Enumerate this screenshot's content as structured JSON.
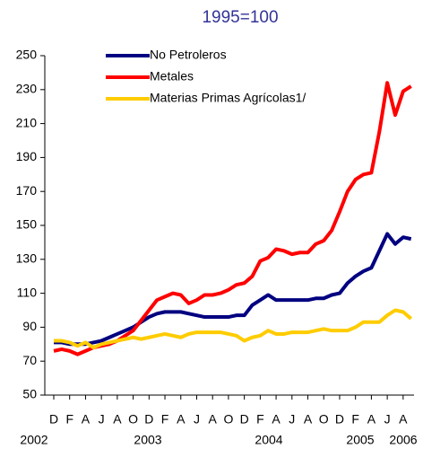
{
  "chart_data": {
    "type": "line",
    "title": "1995=100",
    "categories": [
      "D",
      null,
      "F",
      null,
      "A",
      null,
      "J",
      null,
      "A",
      null,
      "O",
      null,
      "D",
      null,
      "F",
      null,
      "A",
      null,
      "J",
      null,
      "A",
      null,
      "O",
      null,
      "D",
      null,
      "F",
      null,
      "A",
      null,
      "J",
      null,
      "A",
      null,
      "O",
      null,
      "D",
      null,
      "F",
      null,
      "A",
      null,
      "J",
      null,
      "A",
      null
    ],
    "year_labels": [
      "2002",
      "2003",
      "2004",
      "2005",
      "2006"
    ],
    "series": [
      {
        "name": "No Petroleros",
        "color": "#000080",
        "values": [
          81,
          81,
          80,
          80,
          80,
          81,
          82,
          84,
          86,
          88,
          90,
          93,
          96,
          98,
          99,
          99,
          99,
          98,
          97,
          96,
          96,
          96,
          96,
          97,
          97,
          103,
          106,
          109,
          106,
          106,
          106,
          106,
          106,
          107,
          107,
          109,
          110,
          116,
          120,
          123,
          125,
          135,
          145,
          139,
          143,
          142
        ]
      },
      {
        "name": "Metales",
        "color": "#ff0000",
        "values": [
          76,
          77,
          76,
          74,
          76,
          78,
          79,
          80,
          82,
          85,
          88,
          94,
          100,
          106,
          108,
          110,
          109,
          104,
          106,
          109,
          109,
          110,
          112,
          115,
          116,
          120,
          129,
          131,
          136,
          135,
          133,
          134,
          134,
          139,
          141,
          147,
          158,
          170,
          177,
          180,
          181,
          205,
          234,
          215,
          229,
          232
        ]
      },
      {
        "name": "Materias Primas Agrícolas1/",
        "color": "#ffcc00",
        "values": [
          82,
          82,
          81,
          79,
          81,
          78,
          80,
          81,
          82,
          83,
          84,
          83,
          84,
          85,
          86,
          85,
          84,
          86,
          87,
          87,
          87,
          87,
          86,
          85,
          82,
          84,
          85,
          88,
          86,
          86,
          87,
          87,
          87,
          88,
          89,
          88,
          88,
          88,
          90,
          93,
          93,
          93,
          97,
          100,
          99,
          95
        ]
      }
    ],
    "ylim": [
      50,
      250
    ],
    "yticks": [
      50,
      70,
      90,
      110,
      130,
      150,
      170,
      190,
      210,
      230,
      250
    ],
    "grid": false
  }
}
